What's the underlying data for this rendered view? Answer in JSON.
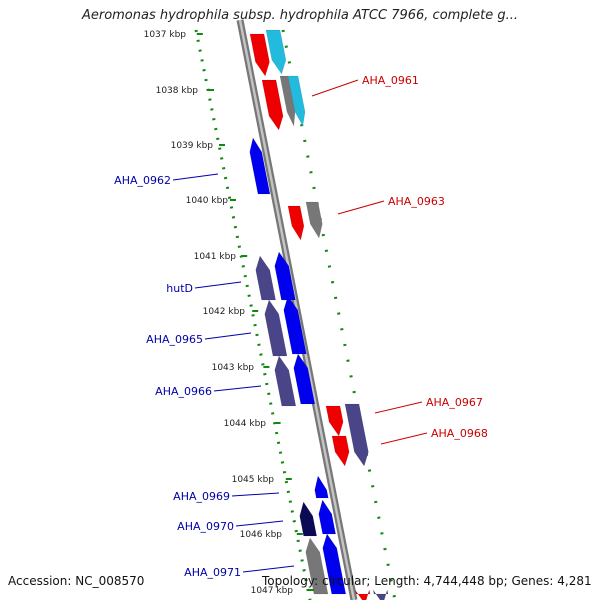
{
  "header": {
    "title": "Aeromonas hydrophila subsp. hydrophila ATCC 7966, complete g..."
  },
  "footer": {
    "accession": "Accession: NC_008570",
    "topology": "Topology: circular; Length: 4,744,448 bp; Genes: 4,281"
  },
  "colors": {
    "forward_label": "#cc0000",
    "reverse_label": "#0000aa",
    "red_gene": "#ee0000",
    "blue_gene": "#0000ee",
    "purple_gene": "#4a4488",
    "cyan_gene": "#22bbdd",
    "gray_gene": "#777777",
    "backbone": "#999999",
    "track_dots": "#118811"
  },
  "ticks": [
    "1037 kbp",
    "1038 kbp",
    "1039 kbp",
    "1040 kbp",
    "1041 kbp",
    "1042 kbp",
    "1043 kbp",
    "1044 kbp",
    "1045 kbp",
    "1046 kbp",
    "1047 kbp"
  ],
  "gene_labels": {
    "forward": [
      "AHA_0961",
      "AHA_0963",
      "AHA_0967",
      "AHA_0968"
    ],
    "reverse": [
      "AHA_0962",
      "hutD",
      "AHA_0965",
      "AHA_0966",
      "AHA_0969",
      "AHA_0970",
      "AHA_0971"
    ]
  }
}
